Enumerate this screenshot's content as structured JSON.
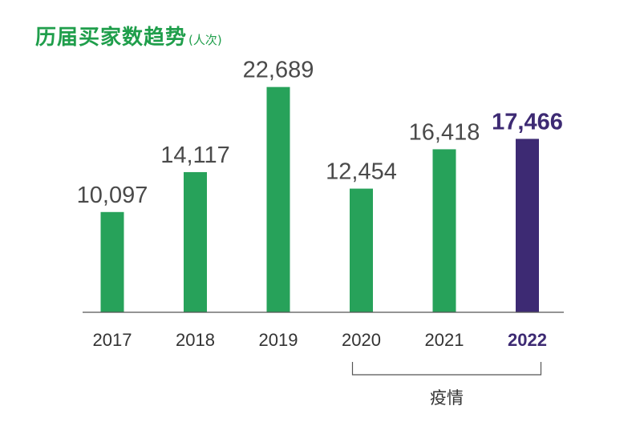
{
  "chart_data": {
    "type": "bar",
    "title": "历届买家数趋势",
    "unit": "(人次)",
    "categories": [
      "2017",
      "2018",
      "2019",
      "2020",
      "2021",
      "2022"
    ],
    "values": [
      10097,
      14117,
      22689,
      12454,
      16418,
      17466
    ],
    "value_labels": [
      "10,097",
      "14,117",
      "22,689",
      "12,454",
      "16,418",
      "17,466"
    ],
    "highlight_category": "2022",
    "ylim": [
      0,
      25000
    ],
    "grid": false,
    "legend": "none",
    "annotations": [
      {
        "text": "疫情",
        "from": "2020",
        "to": "2022"
      }
    ]
  },
  "colors": {
    "bar": "#27a25a",
    "highlight_bar": "#3d2a73",
    "title": "#1f9e4b",
    "axis": "#555555",
    "bracket": "#555555"
  }
}
